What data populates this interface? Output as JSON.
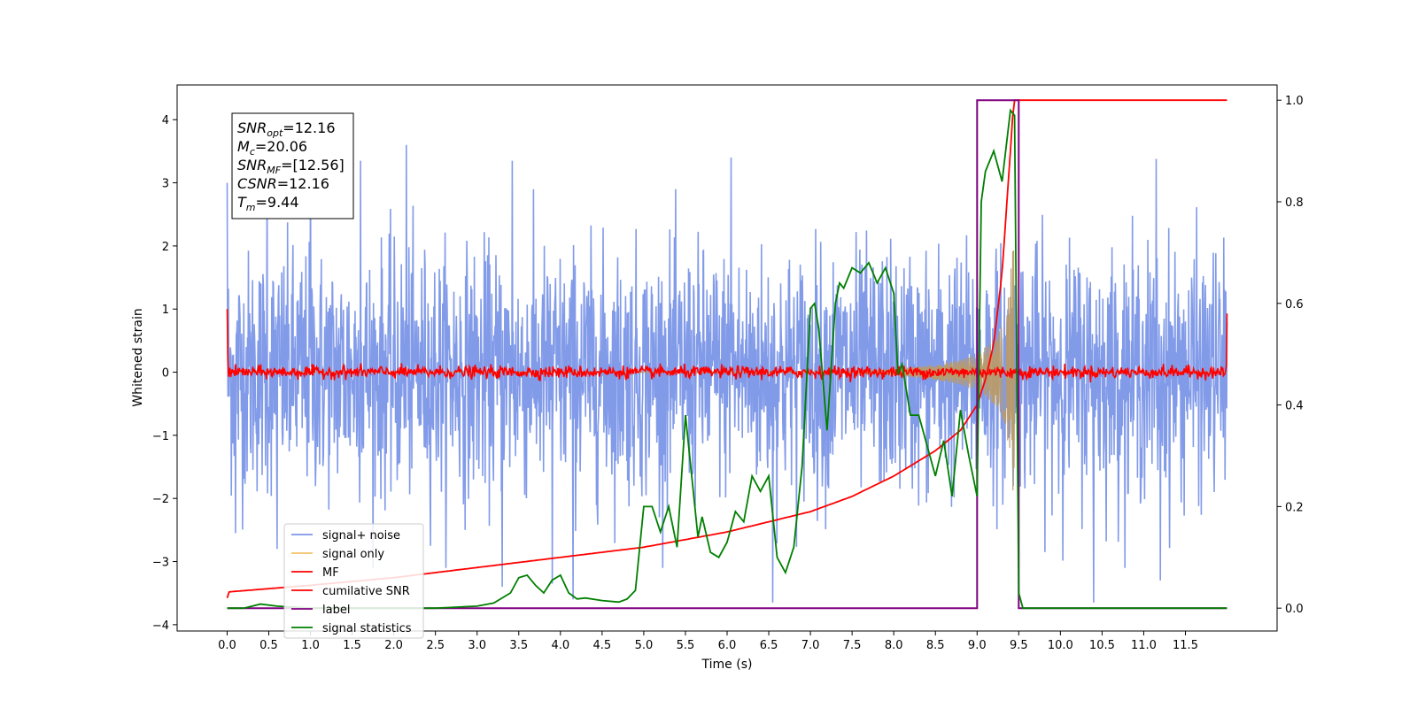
{
  "chart_data": {
    "type": "line",
    "xlabel": "Time (s)",
    "ylabel": "Whitened strain",
    "xlim": [
      -0.6,
      12.6
    ],
    "ylim": [
      -4.1,
      4.55
    ],
    "ylim_right": [
      -0.045,
      1.03
    ],
    "x_ticks": [
      0.0,
      0.5,
      1.0,
      1.5,
      2.0,
      2.5,
      3.0,
      3.5,
      4.0,
      4.5,
      5.0,
      5.5,
      6.0,
      6.5,
      7.0,
      7.5,
      8.0,
      8.5,
      9.0,
      9.5,
      10.0,
      10.5,
      11.0,
      11.5
    ],
    "x_tick_labels": [
      "0.0",
      "0.5",
      "1.0",
      "1.5",
      "2.0",
      "2.5",
      "3.0",
      "3.5",
      "4.0",
      "4.5",
      "5.0",
      "5.5",
      "6.0",
      "6.5",
      "7.0",
      "7.5",
      "8.0",
      "8.5",
      "9.0",
      "9.5",
      "10.0",
      "10.5",
      "11.0",
      "11.5"
    ],
    "y_ticks": [
      -4,
      -3,
      -2,
      -1,
      0,
      1,
      2,
      3,
      4
    ],
    "y_tick_labels": [
      "−4",
      "−3",
      "−2",
      "−1",
      "0",
      "1",
      "2",
      "3",
      "4"
    ],
    "y2_ticks": [
      0.0,
      0.2,
      0.4,
      0.6,
      0.8,
      1.0
    ],
    "y2_tick_labels": [
      "0.0",
      "0.2",
      "0.4",
      "0.6",
      "0.8",
      "1.0"
    ],
    "grid": false,
    "legend_position": "lower-left",
    "legend": [
      {
        "label": "signal+ noise",
        "color": "#7b96e8"
      },
      {
        "label": "signal only",
        "color": "#f5c26b"
      },
      {
        "label": "MF",
        "color": "#ff0000"
      },
      {
        "label": "cumilative SNR",
        "color": "#ff0000"
      },
      {
        "label": "label",
        "color": "#800080"
      },
      {
        "label": "signal statistics",
        "color": "#007f00"
      }
    ],
    "stats_box": [
      {
        "name": "SNR",
        "sub": "opt",
        "value": "=12.16"
      },
      {
        "name": "M",
        "sub": "c",
        "value": "=20.06"
      },
      {
        "name": "SNR",
        "sub": "MF",
        "value": "=[12.56]"
      },
      {
        "name": "CSNR",
        "sub": "",
        "value": "=12.16"
      },
      {
        "name": "T",
        "sub": "m",
        "value": "=9.44"
      }
    ],
    "series": [
      {
        "name": "signal+ noise",
        "axis": "left",
        "color": "#7b96e8",
        "x_range": [
          0.0,
          12.0
        ],
        "envelope_typical": [
          -1.6,
          1.6
        ],
        "peaks": [
          {
            "x": 0.0,
            "y": 3.0
          },
          {
            "x": 0.48,
            "y": 3.4
          },
          {
            "x": 1.0,
            "y": 3.3
          },
          {
            "x": 1.6,
            "y": 3.35
          },
          {
            "x": 2.15,
            "y": 3.6
          },
          {
            "x": 3.42,
            "y": 3.35
          },
          {
            "x": 6.05,
            "y": 3.4
          },
          {
            "x": 11.15,
            "y": 3.38
          },
          {
            "x": 0.1,
            "y": -2.55
          },
          {
            "x": 0.6,
            "y": -2.8
          },
          {
            "x": 3.3,
            "y": -3.4
          },
          {
            "x": 3.9,
            "y": -3.35
          },
          {
            "x": 4.15,
            "y": -3.6
          },
          {
            "x": 6.55,
            "y": -3.65
          },
          {
            "x": 10.4,
            "y": -3.65
          },
          {
            "x": 11.2,
            "y": -3.3
          }
        ]
      },
      {
        "name": "signal only",
        "axis": "left",
        "color": "#f5c26b",
        "x": [
          0.0,
          7.5,
          8.0,
          8.5,
          8.8,
          9.0,
          9.2,
          9.35,
          9.44,
          9.46,
          12.0
        ],
        "amplitude": [
          0.0,
          0.01,
          0.05,
          0.12,
          0.2,
          0.3,
          0.5,
          0.85,
          2.1,
          0.0,
          0.0
        ]
      },
      {
        "name": "MF",
        "axis": "left",
        "color": "#ff0000",
        "x_range": [
          0.0,
          12.0
        ],
        "start_value": 1.0,
        "end_value": 0.93,
        "noise_amplitude": 0.08
      },
      {
        "name": "cumilative SNR",
        "axis": "right",
        "color": "#ff0000",
        "x": [
          0.0,
          0.02,
          1.0,
          2.0,
          3.0,
          4.0,
          5.0,
          6.0,
          7.0,
          7.5,
          8.0,
          8.5,
          8.8,
          9.0,
          9.1,
          9.2,
          9.3,
          9.4,
          9.44,
          12.0
        ],
        "y": [
          0.02,
          0.032,
          0.045,
          0.06,
          0.08,
          0.1,
          0.12,
          0.15,
          0.19,
          0.22,
          0.26,
          0.31,
          0.35,
          0.4,
          0.45,
          0.52,
          0.66,
          0.9,
          1.0,
          1.0
        ]
      },
      {
        "name": "label",
        "axis": "right",
        "color": "#800080",
        "x": [
          0.0,
          9.0,
          9.0,
          9.44,
          9.44,
          9.5,
          9.5,
          12.0
        ],
        "y": [
          0.0,
          0.0,
          1.0,
          1.0,
          1.0,
          1.0,
          0.0,
          0.0
        ],
        "note": "step from 0 to 1 near 9.0 s, back to 0 near 9.5 s"
      },
      {
        "name": "signal statistics",
        "axis": "right",
        "color": "#007f00",
        "x": [
          0.0,
          0.2,
          0.4,
          0.6,
          0.8,
          1.0,
          1.5,
          2.0,
          2.5,
          3.0,
          3.2,
          3.4,
          3.5,
          3.6,
          3.7,
          3.8,
          3.9,
          4.0,
          4.1,
          4.2,
          4.3,
          4.5,
          4.7,
          4.8,
          4.9,
          5.0,
          5.1,
          5.2,
          5.3,
          5.4,
          5.5,
          5.55,
          5.65,
          5.7,
          5.8,
          5.9,
          6.0,
          6.1,
          6.2,
          6.3,
          6.4,
          6.5,
          6.6,
          6.7,
          6.8,
          6.9,
          7.0,
          7.05,
          7.1,
          7.2,
          7.3,
          7.35,
          7.4,
          7.5,
          7.6,
          7.7,
          7.8,
          7.9,
          8.0,
          8.05,
          8.1,
          8.2,
          8.3,
          8.4,
          8.5,
          8.6,
          8.7,
          8.8,
          8.9,
          9.0,
          9.05,
          9.1,
          9.2,
          9.3,
          9.4,
          9.45,
          9.5,
          9.55,
          10.0,
          11.0,
          12.0
        ],
        "y": [
          0.0,
          0.0,
          0.008,
          0.004,
          0.002,
          0.0,
          0.0,
          0.0,
          0.0,
          0.004,
          0.01,
          0.03,
          0.06,
          0.065,
          0.045,
          0.03,
          0.055,
          0.065,
          0.03,
          0.018,
          0.02,
          0.015,
          0.012,
          0.018,
          0.035,
          0.2,
          0.2,
          0.15,
          0.2,
          0.12,
          0.38,
          0.3,
          0.14,
          0.18,
          0.11,
          0.1,
          0.13,
          0.19,
          0.17,
          0.26,
          0.23,
          0.26,
          0.1,
          0.07,
          0.12,
          0.28,
          0.59,
          0.6,
          0.55,
          0.35,
          0.6,
          0.64,
          0.63,
          0.67,
          0.66,
          0.68,
          0.64,
          0.67,
          0.62,
          0.46,
          0.48,
          0.38,
          0.38,
          0.32,
          0.26,
          0.33,
          0.22,
          0.39,
          0.3,
          0.22,
          0.8,
          0.86,
          0.9,
          0.84,
          0.98,
          0.97,
          0.03,
          0.0,
          0.0,
          0.0,
          0.0
        ]
      }
    ]
  }
}
